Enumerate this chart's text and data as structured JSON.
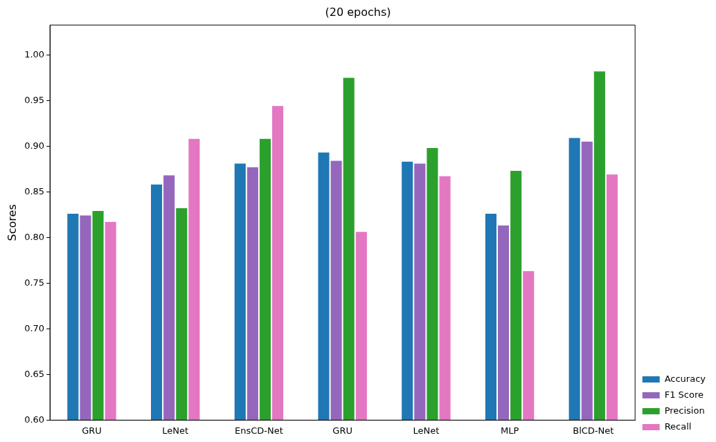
{
  "chart_data": {
    "type": "bar",
    "title": "(20 epochs)",
    "ylabel": "Scores",
    "categories": [
      "GRU",
      "LeNet",
      "EnsCD-Net",
      "GRU",
      "LeNet",
      "MLP",
      "BlCD-Net"
    ],
    "series": [
      {
        "name": "Accuracy",
        "color": "#1f77b4",
        "values": [
          0.827,
          0.859,
          0.882,
          0.894,
          0.884,
          0.827,
          0.91
        ]
      },
      {
        "name": "F1 Score",
        "color": "#9467bd",
        "values": [
          0.825,
          0.869,
          0.878,
          0.885,
          0.882,
          0.814,
          0.906
        ]
      },
      {
        "name": "Precision",
        "color": "#2ca02c",
        "values": [
          0.83,
          0.833,
          0.909,
          0.976,
          0.899,
          0.874,
          0.983
        ]
      },
      {
        "name": "Recall",
        "color": "#e377c2",
        "values": [
          0.818,
          0.909,
          0.945,
          0.807,
          0.868,
          0.764,
          0.87
        ]
      }
    ],
    "ylim": [
      0.6,
      1.033
    ],
    "yticks": [
      {
        "value": 0.6,
        "label": "0.60"
      },
      {
        "value": 0.65,
        "label": "0.65"
      },
      {
        "value": 0.7,
        "label": "0.70"
      },
      {
        "value": 0.75,
        "label": "0.75"
      },
      {
        "value": 0.8,
        "label": "0.80"
      },
      {
        "value": 0.85,
        "label": "0.85"
      },
      {
        "value": 0.9,
        "label": "0.90"
      },
      {
        "value": 0.95,
        "label": "0.95"
      },
      {
        "value": 1.0,
        "label": "1.00"
      }
    ],
    "grid": false,
    "legend": "bottom right"
  }
}
